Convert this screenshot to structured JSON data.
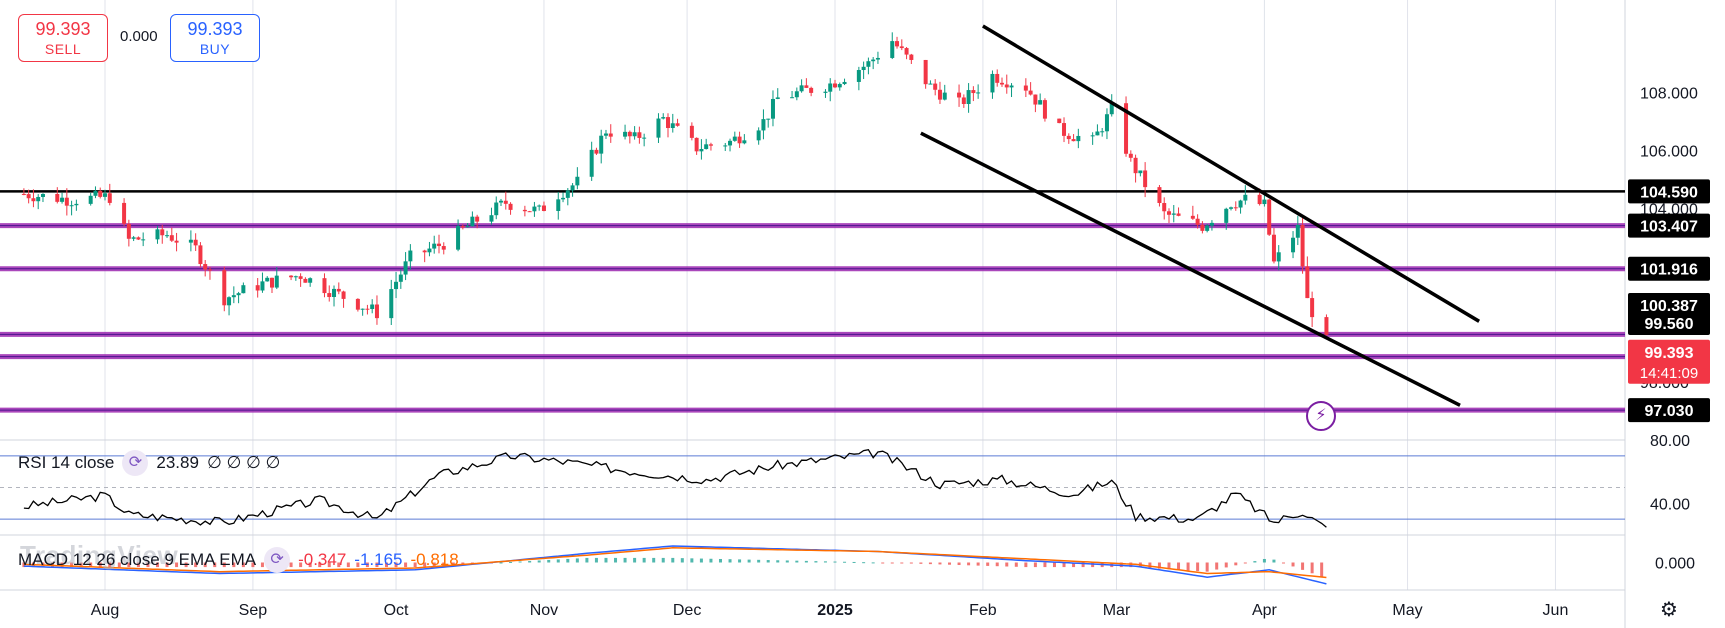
{
  "trade": {
    "sell_price": "99.393",
    "sell_label": "SELL",
    "spread": "0.000",
    "buy_price": "99.393",
    "buy_label": "BUY"
  },
  "indicators": {
    "rsi": {
      "name": "RSI 14 close",
      "value": "23.89",
      "extra": "∅ ∅ ∅ ∅"
    },
    "macd": {
      "name": "MACD 12 26 close 9 EMA EMA",
      "hist": "-0.347",
      "macd": "-1.165",
      "signal": "-0.818"
    }
  },
  "watermark": "TradingView",
  "icons": {
    "cycle": "cycle-icon",
    "flash": "lightning-icon",
    "settings": "gear-icon"
  },
  "colors": {
    "up": "#089981",
    "down": "#f23645",
    "channel": "#000000",
    "purple": "#9c27b0",
    "rsi": "#000000",
    "macd": "#2962ff",
    "signal": "#ff6d00"
  },
  "chart_data": {
    "type": "candlestick",
    "price_axis": {
      "range": [
        96.0,
        111.2
      ],
      "ticks": [
        "108.000",
        "106.000",
        "104.000",
        "98.000"
      ]
    },
    "time_axis": {
      "labels": [
        "Aug",
        "Sep",
        "Oct",
        "Nov",
        "Dec",
        "2025",
        "Feb",
        "Mar",
        "Apr",
        "May",
        "Jun"
      ]
    },
    "price_labels": [
      {
        "value": "104.590",
        "style": "black",
        "price": 104.59
      },
      {
        "value": "103.407",
        "style": "black",
        "price": 103.407
      },
      {
        "value": "101.916",
        "style": "black",
        "price": 101.916
      },
      {
        "value": "100.387",
        "style": "black",
        "price": 100.387
      },
      {
        "value": "99.560",
        "style": "black",
        "price": 99.56
      },
      {
        "value": "99.393",
        "sub": "14:41:09",
        "style": "red",
        "price": 99.393
      },
      {
        "value": "97.030",
        "style": "black",
        "price": 97.03
      }
    ],
    "horizontal_levels": [
      {
        "price": 104.59,
        "color": "black"
      },
      {
        "price": 103.407,
        "color": "purple"
      },
      {
        "price": 101.916,
        "color": "purple"
      },
      {
        "price": 99.65,
        "color": "purple"
      },
      {
        "price": 98.88,
        "color": "purple"
      },
      {
        "price": 97.03,
        "color": "purple"
      }
    ],
    "channel": [
      {
        "from": [
          "2025-02-01",
          110.3
        ],
        "to": [
          "2025-05-16",
          100.1
        ]
      },
      {
        "from": [
          "2025-01-19",
          106.6
        ],
        "to": [
          "2025-05-12",
          97.2
        ]
      }
    ],
    "close_path": [
      [
        "2024-07-15",
        104.5
      ],
      [
        "2024-07-25",
        104.3
      ],
      [
        "2024-08-02",
        104.4
      ],
      [
        "2024-08-06",
        102.9
      ],
      [
        "2024-08-14",
        103.1
      ],
      [
        "2024-08-20",
        102.6
      ],
      [
        "2024-08-26",
        100.9
      ],
      [
        "2024-09-03",
        101.4
      ],
      [
        "2024-09-11",
        101.7
      ],
      [
        "2024-09-18",
        101.1
      ],
      [
        "2024-09-27",
        100.4
      ],
      [
        "2024-10-04",
        102.3
      ],
      [
        "2024-10-11",
        102.8
      ],
      [
        "2024-10-18",
        103.6
      ],
      [
        "2024-10-24",
        104.2
      ],
      [
        "2024-10-31",
        103.9
      ],
      [
        "2024-11-04",
        104.5
      ],
      [
        "2024-11-08",
        104.9
      ],
      [
        "2024-11-14",
        106.7
      ],
      [
        "2024-11-20",
        106.4
      ],
      [
        "2024-11-26",
        107.1
      ],
      [
        "2024-12-03",
        106.1
      ],
      [
        "2024-12-10",
        106.3
      ],
      [
        "2024-12-17",
        107.0
      ],
      [
        "2024-12-20",
        107.8
      ],
      [
        "2024-12-31",
        108.3
      ],
      [
        "2025-01-08",
        109.0
      ],
      [
        "2025-01-13",
        109.8
      ],
      [
        "2025-01-21",
        108.2
      ],
      [
        "2025-01-27",
        107.6
      ],
      [
        "2025-02-03",
        108.6
      ],
      [
        "2025-02-10",
        108.2
      ],
      [
        "2025-02-17",
        106.7
      ],
      [
        "2025-02-24",
        106.3
      ],
      [
        "2025-02-28",
        107.4
      ],
      [
        "2025-03-04",
        105.6
      ],
      [
        "2025-03-11",
        103.8
      ],
      [
        "2025-03-19",
        103.4
      ],
      [
        "2025-03-25",
        104.2
      ],
      [
        "2025-03-28",
        104.3
      ],
      [
        "2025-04-01",
        104.1
      ],
      [
        "2025-04-03",
        102.1
      ],
      [
        "2025-04-08",
        103.3
      ],
      [
        "2025-04-10",
        100.8
      ],
      [
        "2025-04-14",
        99.39
      ]
    ],
    "rsi": {
      "range": [
        20,
        80
      ],
      "ticks": [
        "80.00",
        "40.00"
      ],
      "levels": [
        70,
        50,
        30
      ],
      "last": 23.89,
      "path": [
        [
          "2024-07-15",
          38
        ],
        [
          "2024-08-01",
          45
        ],
        [
          "2024-08-06",
          33
        ],
        [
          "2024-08-26",
          28
        ],
        [
          "2024-09-15",
          42
        ],
        [
          "2024-09-27",
          30
        ],
        [
          "2024-10-10",
          58
        ],
        [
          "2024-10-25",
          70
        ],
        [
          "2024-11-06",
          66
        ],
        [
          "2024-11-20",
          60
        ],
        [
          "2024-12-05",
          55
        ],
        [
          "2024-12-20",
          64
        ],
        [
          "2025-01-10",
          72
        ],
        [
          "2025-01-23",
          52
        ],
        [
          "2025-02-05",
          55
        ],
        [
          "2025-02-20",
          46
        ],
        [
          "2025-02-28",
          54
        ],
        [
          "2025-03-05",
          32
        ],
        [
          "2025-03-18",
          30
        ],
        [
          "2025-03-26",
          46
        ],
        [
          "2025-04-03",
          28
        ],
        [
          "2025-04-09",
          35
        ],
        [
          "2025-04-14",
          23.89
        ]
      ]
    },
    "macd": {
      "range": [
        -1.5,
        1.5
      ],
      "ticks": [
        "0.000"
      ],
      "last_macd": -1.165,
      "last_signal": -0.818,
      "last_hist": -0.347,
      "macd_path": [
        [
          "2024-07-15",
          -0.2
        ],
        [
          "2024-08-25",
          -0.6
        ],
        [
          "2024-10-05",
          -0.4
        ],
        [
          "2024-11-10",
          0.5
        ],
        [
          "2024-11-28",
          0.9
        ],
        [
          "2025-01-10",
          0.6
        ],
        [
          "2025-02-10",
          0.1
        ],
        [
          "2025-03-05",
          -0.2
        ],
        [
          "2025-03-20",
          -0.8
        ],
        [
          "2025-04-02",
          -0.4
        ],
        [
          "2025-04-14",
          -1.165
        ]
      ],
      "signal_path": [
        [
          "2024-07-15",
          -0.1
        ],
        [
          "2024-08-25",
          -0.5
        ],
        [
          "2024-10-05",
          -0.3
        ],
        [
          "2024-11-10",
          0.4
        ],
        [
          "2024-11-28",
          0.8
        ],
        [
          "2025-01-10",
          0.6
        ],
        [
          "2025-02-10",
          0.2
        ],
        [
          "2025-03-05",
          -0.1
        ],
        [
          "2025-03-20",
          -0.6
        ],
        [
          "2025-04-02",
          -0.5
        ],
        [
          "2025-04-14",
          -0.818
        ]
      ]
    }
  }
}
